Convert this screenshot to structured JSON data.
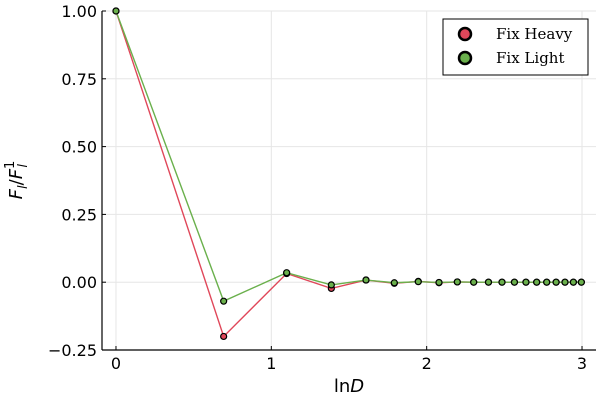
{
  "chart_data": {
    "type": "scatter",
    "xlabel": {
      "main": "ln",
      "italic": "D"
    },
    "ylabel": {
      "F": "F",
      "sub": "l",
      "slash": "/",
      "F2": "F",
      "sup": "1",
      "sub2": "l"
    },
    "xlim": [
      -0.09,
      3.09
    ],
    "ylim": [
      -0.25,
      1.0
    ],
    "xticks": [
      0,
      1,
      2,
      3
    ],
    "xtick_labels": [
      "0",
      "1",
      "2",
      "3"
    ],
    "yticks": [
      -0.25,
      0.0,
      0.25,
      0.5,
      0.75,
      1.0
    ],
    "ytick_labels": [
      "−0.25",
      "0.00",
      "0.25",
      "0.50",
      "0.75",
      "1.00"
    ],
    "grid": true,
    "legend_position": "top-right",
    "series": [
      {
        "name": "Fix Heavy",
        "color": "#e0475a",
        "x": [
          0.0,
          0.6931,
          1.0986,
          1.3863,
          1.6094,
          1.7918,
          1.9459,
          2.0794,
          2.1972,
          2.3026,
          2.3979,
          2.4849,
          2.5649,
          2.6391,
          2.7081,
          2.7726,
          2.8332,
          2.8904,
          2.9444,
          2.9957
        ],
        "y": [
          1.0,
          -0.2,
          0.032,
          -0.023,
          0.008,
          -0.004,
          0.003,
          -0.002,
          0.001,
          0.0,
          0.0,
          0.0,
          0.0,
          0.0,
          0.0,
          0.0,
          0.0,
          0.0,
          0.0,
          0.0
        ]
      },
      {
        "name": "Fix Light",
        "color": "#6ab04c",
        "x": [
          0.0,
          0.6931,
          1.0986,
          1.3863,
          1.6094,
          1.7918,
          1.9459,
          2.0794,
          2.1972,
          2.3026,
          2.3979,
          2.4849,
          2.5649,
          2.6391,
          2.7081,
          2.7726,
          2.8332,
          2.8904,
          2.9444,
          2.9957
        ],
        "y": [
          1.0,
          -0.07,
          0.035,
          -0.01,
          0.008,
          -0.002,
          0.002,
          -0.001,
          0.001,
          0.0,
          0.0,
          0.0,
          0.0,
          0.0,
          0.0,
          0.0,
          0.0,
          0.0,
          0.0,
          0.0
        ]
      }
    ]
  }
}
